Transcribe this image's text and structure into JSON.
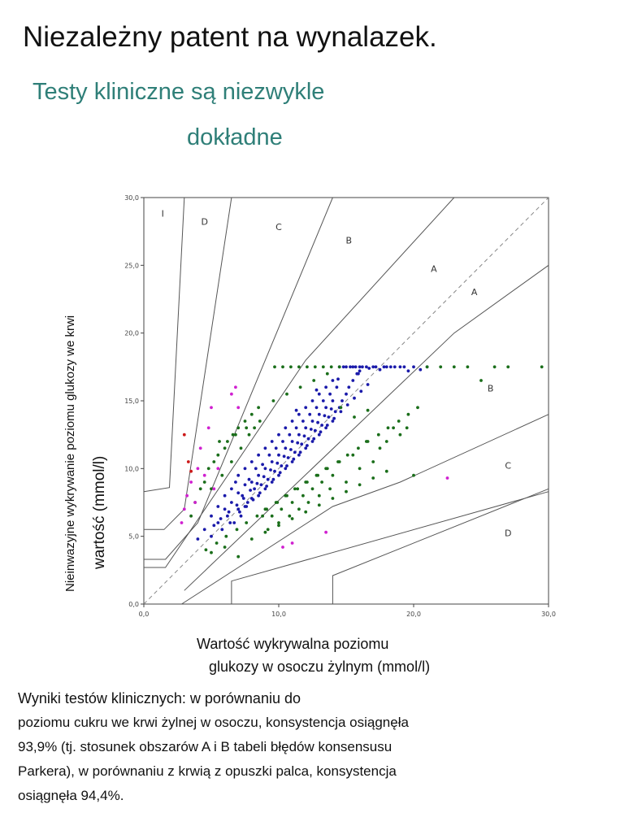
{
  "title": "Niezależny patent na wynalazek.",
  "subtitle_line1": "Testy kliniczne są niezwykle",
  "subtitle_line2": "dokładne",
  "ylabel_outer": "Nieinwazyjne wykrywanie poziomu glukozy we krwi",
  "ylabel_inner": "wartość (mmol/l)",
  "xlabel_line1": "Wartość wykrywalna poziomu",
  "xlabel_line2": "glukozy w osoczu żylnym (mmol/l)",
  "results_lines": [
    "Wyniki testów klinicznych: w porównaniu do",
    "poziomu cukru we krwi żylnej w osoczu, konsystencja osiągnęła",
    "93,9% (tj. stosunek obszarów A i B tabeli błędów konsensusu",
    "Parkera), w porównaniu z krwią z opuszki palca, konsystencja",
    "osiągnęła 94,4%."
  ],
  "colors": {
    "subtitle": "#2f7f78",
    "zone_lines": "#555555",
    "identity_line": "#888888",
    "zone_A": "#1a1aaa",
    "zone_B": "#1a6e1a",
    "zone_C": "#d020d0",
    "zone_D": "#cc1a1a"
  },
  "chart_data": {
    "type": "scatter",
    "title": "",
    "xlabel": "Wartość wykrywalna poziomu glukozy w osoczu żylnym (mmol/l)",
    "ylabel": "Nieinwazyjne wykrywanie poziomu glukozy we krwi wartość (mmol/l)",
    "xlim": [
      0,
      30
    ],
    "ylim": [
      0,
      30
    ],
    "x_ticks": [
      "0,0",
      "10,0",
      "20,0",
      "30,0"
    ],
    "y_ticks": [
      "0,0",
      "5,0",
      "10,0",
      "15,0",
      "20,0",
      "25,0",
      "30,0"
    ],
    "grid": false,
    "identity_line": true,
    "zone_labels": [
      {
        "text": "I",
        "x": 1.4,
        "y": 28.6
      },
      {
        "text": "D",
        "x": 4.5,
        "y": 28.0
      },
      {
        "text": "C",
        "x": 10.0,
        "y": 27.6
      },
      {
        "text": "B",
        "x": 15.2,
        "y": 26.6
      },
      {
        "text": "A",
        "x": 21.5,
        "y": 24.5
      },
      {
        "text": "A",
        "x": 24.5,
        "y": 22.8
      },
      {
        "text": "B",
        "x": 25.7,
        "y": 15.7
      },
      {
        "text": "C",
        "x": 27.0,
        "y": 10.0
      },
      {
        "text": "D",
        "x": 27.0,
        "y": 5.0
      }
    ],
    "zone_boundaries": [
      [
        [
          0,
          8.3
        ],
        [
          1.9,
          8.6
        ],
        [
          3.0,
          30
        ]
      ],
      [
        [
          0,
          5.5
        ],
        [
          1.5,
          5.5
        ],
        [
          3.0,
          7.0
        ],
        [
          6.5,
          30
        ]
      ],
      [
        [
          0,
          3.3
        ],
        [
          1.6,
          3.3
        ],
        [
          4.0,
          6.0
        ],
        [
          14.0,
          30
        ]
      ],
      [
        [
          0,
          2.7
        ],
        [
          1.6,
          2.7
        ],
        [
          12.0,
          18.0
        ],
        [
          23.0,
          30
        ]
      ],
      [
        [
          0,
          0
        ],
        [
          30,
          30
        ]
      ],
      [
        [
          3.0,
          1.0
        ],
        [
          23.0,
          20.0
        ],
        [
          30,
          25.0
        ]
      ],
      [
        [
          2.8,
          0
        ],
        [
          14.0,
          7.2
        ],
        [
          19.0,
          9.0
        ],
        [
          30,
          14.0
        ]
      ],
      [
        [
          6.5,
          0
        ],
        [
          6.5,
          1.7
        ],
        [
          30,
          8.3
        ]
      ],
      [
        [
          14.0,
          0
        ],
        [
          14.0,
          2.1
        ],
        [
          30,
          8.5
        ]
      ]
    ],
    "series": [
      {
        "name": "A",
        "x": [
          4.0,
          4.5,
          5.0,
          5.0,
          5.5,
          5.5,
          5.8,
          6.0,
          6.0,
          6.2,
          6.5,
          6.5,
          6.7,
          6.8,
          7.0,
          7.0,
          7.0,
          7.2,
          7.3,
          7.5,
          7.5,
          7.5,
          7.7,
          7.8,
          8.0,
          8.0,
          8.0,
          8.2,
          8.3,
          8.5,
          8.5,
          8.5,
          8.7,
          8.8,
          9.0,
          9.0,
          9.0,
          9.2,
          9.3,
          9.5,
          9.5,
          9.5,
          9.7,
          9.8,
          10.0,
          10.0,
          10.0,
          10.2,
          10.3,
          10.5,
          10.5,
          10.5,
          10.7,
          10.8,
          11.0,
          11.0,
          11.0,
          11.2,
          11.3,
          11.5,
          11.5,
          11.5,
          11.7,
          11.8,
          12.0,
          12.0,
          12.0,
          12.2,
          12.3,
          12.5,
          12.5,
          12.5,
          12.7,
          12.8,
          13.0,
          13.0,
          13.0,
          13.2,
          13.3,
          13.5,
          13.5,
          13.5,
          13.7,
          13.8,
          14.0,
          14.0,
          14.0,
          14.2,
          14.3,
          14.5,
          14.5,
          14.7,
          14.8,
          15.0,
          15.0,
          15.2,
          15.3,
          15.5,
          15.5,
          15.7,
          15.8,
          16.0,
          16.0,
          16.2,
          16.5,
          16.7,
          17.0,
          17.2,
          17.5,
          17.8,
          18.0,
          18.3,
          18.6,
          19.0,
          19.3,
          19.6,
          20.0,
          20.5,
          21.0,
          6.3,
          6.9,
          7.4,
          7.9,
          8.4,
          8.9,
          9.4,
          9.9,
          10.4,
          10.9,
          11.4,
          11.9,
          12.4,
          12.9,
          13.4,
          13.9,
          5.2,
          5.7,
          6.4,
          7.1,
          7.6,
          8.1,
          8.6,
          9.1,
          9.6,
          10.1,
          10.6,
          11.1,
          11.6,
          12.1,
          12.6,
          13.1,
          13.6,
          14.1,
          14.6,
          15.1,
          15.6,
          16.1,
          16.6,
          11.3,
          12.8,
          14.4,
          15.9
        ],
        "y": [
          4.8,
          5.5,
          6.5,
          5.0,
          6.0,
          7.2,
          5.5,
          7.0,
          8.0,
          6.5,
          7.5,
          8.5,
          6.0,
          9.0,
          7.0,
          8.2,
          9.5,
          6.5,
          8.0,
          7.2,
          8.8,
          10.0,
          7.5,
          9.2,
          7.8,
          9.0,
          10.5,
          8.5,
          10.0,
          8.0,
          9.5,
          11.0,
          8.8,
          10.3,
          8.5,
          10.0,
          11.5,
          9.2,
          11.0,
          9.0,
          10.5,
          12.0,
          9.8,
          11.5,
          9.5,
          11.0,
          12.5,
          10.2,
          12.0,
          10.0,
          11.5,
          13.0,
          10.8,
          12.5,
          10.5,
          12.0,
          13.5,
          11.2,
          13.0,
          11.0,
          12.5,
          14.0,
          11.8,
          13.5,
          11.5,
          13.0,
          14.5,
          12.2,
          14.0,
          12.0,
          13.5,
          15.0,
          12.8,
          14.5,
          12.5,
          14.0,
          15.5,
          13.2,
          15.0,
          13.0,
          14.5,
          16.0,
          13.8,
          15.5,
          13.5,
          15.0,
          16.5,
          14.2,
          16.0,
          14.5,
          17.5,
          15.0,
          17.5,
          15.5,
          17.5,
          16.0,
          17.5,
          16.5,
          17.5,
          17.5,
          17.0,
          17.5,
          17.2,
          17.5,
          17.5,
          17.4,
          17.5,
          17.5,
          17.3,
          17.5,
          17.5,
          17.5,
          17.5,
          17.5,
          17.5,
          17.2,
          17.5,
          17.3,
          17.5,
          6.8,
          7.3,
          7.8,
          8.4,
          8.9,
          9.4,
          9.9,
          10.4,
          10.9,
          11.4,
          11.9,
          12.4,
          12.9,
          13.4,
          13.9,
          14.4,
          5.8,
          6.3,
          6.0,
          6.8,
          7.2,
          7.7,
          8.2,
          8.7,
          9.2,
          9.7,
          10.2,
          10.7,
          11.2,
          11.7,
          12.2,
          12.7,
          13.2,
          13.7,
          14.2,
          14.7,
          15.2,
          15.7,
          16.2,
          14.3,
          15.8,
          16.6,
          17.0
        ]
      },
      {
        "name": "B",
        "x": [
          3.5,
          3.8,
          4.2,
          4.5,
          4.8,
          5.0,
          5.2,
          5.5,
          5.8,
          6.0,
          6.2,
          6.5,
          6.8,
          7.0,
          7.2,
          7.5,
          7.8,
          8.0,
          8.2,
          8.5,
          8.8,
          9.0,
          9.2,
          9.5,
          9.8,
          10.0,
          10.2,
          10.5,
          10.8,
          11.0,
          11.2,
          11.5,
          11.8,
          12.0,
          12.2,
          12.5,
          12.8,
          13.0,
          13.2,
          13.5,
          13.8,
          14.0,
          14.5,
          15.0,
          15.5,
          16.0,
          16.5,
          17.0,
          17.5,
          18.0,
          18.5,
          19.0,
          19.5,
          20.0,
          4.6,
          5.4,
          6.1,
          6.9,
          7.6,
          8.4,
          9.1,
          9.9,
          10.6,
          11.4,
          12.1,
          12.9,
          13.6,
          14.4,
          15.1,
          15.9,
          16.6,
          17.4,
          18.1,
          18.9,
          19.6,
          20.3,
          21.0,
          22.0,
          23.0,
          24.0,
          25.0,
          26.0,
          27.0,
          29.5,
          5.0,
          6.0,
          7.0,
          8.0,
          9.0,
          10.0,
          11.0,
          12.0,
          13.0,
          14.0,
          15.0,
          16.0,
          17.0,
          18.0,
          5.6,
          6.6,
          7.6,
          8.6,
          9.6,
          10.6,
          11.6,
          12.6,
          13.6,
          14.6,
          15.6,
          16.6,
          9.7,
          10.3,
          10.9,
          11.5,
          12.1,
          12.7,
          13.3,
          13.9,
          14.5
        ],
        "y": [
          6.5,
          7.5,
          8.5,
          9.0,
          10.0,
          8.5,
          10.5,
          11.0,
          9.5,
          11.5,
          12.0,
          10.5,
          12.5,
          13.0,
          11.5,
          13.5,
          12.5,
          14.0,
          13.0,
          14.5,
          6.5,
          7.0,
          5.5,
          6.5,
          7.5,
          6.0,
          7.0,
          8.0,
          6.5,
          7.5,
          8.5,
          7.0,
          8.0,
          9.0,
          7.5,
          8.5,
          9.5,
          8.0,
          9.0,
          10.0,
          8.5,
          9.5,
          10.5,
          9.0,
          11.0,
          10.0,
          12.0,
          10.5,
          11.5,
          12.0,
          13.0,
          12.5,
          13.0,
          9.5,
          4.0,
          4.5,
          5.0,
          5.5,
          6.0,
          6.5,
          7.0,
          7.5,
          8.0,
          8.5,
          9.0,
          9.5,
          10.0,
          10.5,
          11.0,
          11.5,
          12.0,
          12.5,
          13.0,
          13.5,
          14.0,
          14.5,
          17.5,
          17.5,
          17.5,
          17.5,
          16.5,
          17.5,
          17.5,
          17.5,
          3.8,
          4.2,
          3.5,
          4.8,
          5.3,
          5.8,
          6.3,
          6.8,
          7.3,
          7.8,
          8.3,
          8.8,
          9.3,
          9.8,
          12.0,
          12.5,
          13.0,
          13.5,
          15.0,
          15.5,
          16.0,
          16.5,
          17.0,
          14.5,
          13.8,
          14.3,
          17.5,
          17.5,
          17.5,
          17.5,
          17.5,
          17.5,
          17.5,
          17.5,
          17.5
        ]
      },
      {
        "name": "C",
        "x": [
          2.8,
          3.0,
          3.2,
          3.5,
          3.8,
          4.0,
          4.2,
          4.5,
          4.8,
          5.0,
          5.2,
          5.5,
          6.5,
          6.8,
          7.0,
          22.5,
          10.3,
          11.0,
          13.5
        ],
        "y": [
          6.0,
          7.0,
          8.0,
          9.0,
          7.5,
          10.0,
          11.5,
          9.5,
          13.0,
          14.5,
          8.5,
          10.0,
          15.5,
          16.0,
          14.5,
          9.3,
          4.2,
          4.5,
          5.3
        ]
      },
      {
        "name": "D",
        "x": [
          3.0,
          3.3,
          3.5
        ],
        "y": [
          12.5,
          10.5,
          9.8
        ]
      }
    ]
  }
}
